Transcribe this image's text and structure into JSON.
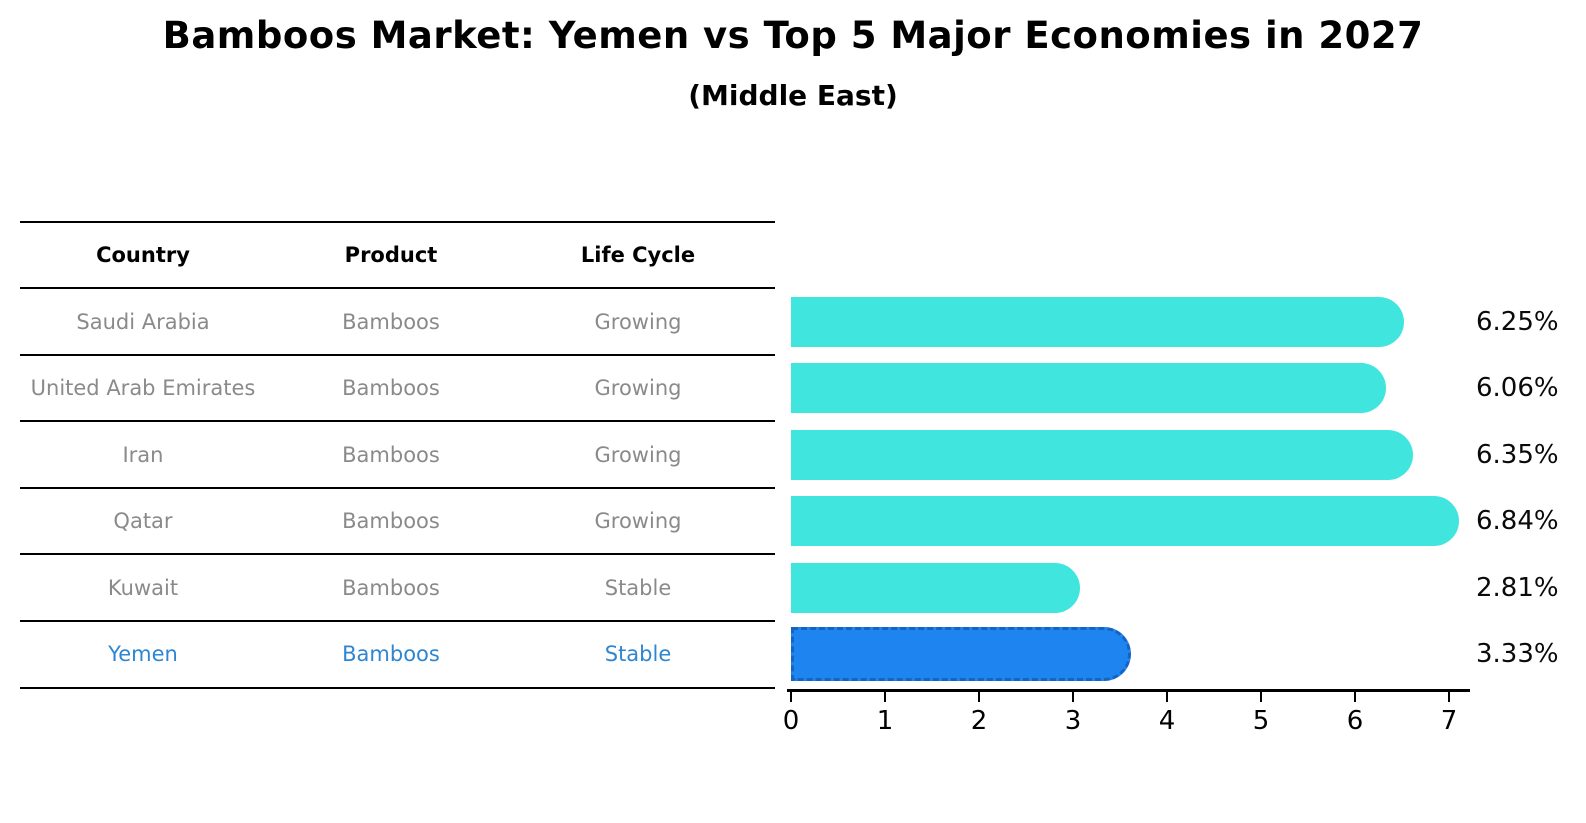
{
  "title": "Bamboos Market: Yemen vs Top 5 Major Economies in 2027",
  "subtitle": "(Middle East)",
  "table": {
    "headers": [
      "Country",
      "Product",
      "Life Cycle"
    ]
  },
  "rows": [
    {
      "country": "Saudi Arabia",
      "product": "Bamboos",
      "life_cycle": "Growing",
      "value_label": "6.25%",
      "highlight": false
    },
    {
      "country": "United Arab Emirates",
      "product": "Bamboos",
      "life_cycle": "Growing",
      "value_label": "6.06%",
      "highlight": false
    },
    {
      "country": "Iran",
      "product": "Bamboos",
      "life_cycle": "Growing",
      "value_label": "6.35%",
      "highlight": false
    },
    {
      "country": "Qatar",
      "product": "Bamboos",
      "life_cycle": "Growing",
      "value_label": "6.84%",
      "highlight": false
    },
    {
      "country": "Kuwait",
      "product": "Bamboos",
      "life_cycle": "Stable",
      "value_label": "2.81%",
      "highlight": false
    },
    {
      "country": "Yemen",
      "product": "Bamboos",
      "life_cycle": "Stable",
      "value_label": "3.33%",
      "highlight": true
    }
  ],
  "chart_data": {
    "type": "bar",
    "orientation": "horizontal",
    "title": "Bamboos Market: Yemen vs Top 5 Major Economies in 2027",
    "subtitle": "(Middle East)",
    "categories": [
      "Saudi Arabia",
      "United Arab Emirates",
      "Iran",
      "Qatar",
      "Kuwait",
      "Yemen"
    ],
    "values": [
      6.25,
      6.06,
      6.35,
      6.84,
      2.81,
      3.33
    ],
    "value_labels": [
      "6.25%",
      "6.06%",
      "6.35%",
      "6.84%",
      "2.81%",
      "3.33%"
    ],
    "xlabel": "",
    "ylabel": "",
    "xlim": [
      0,
      7.25
    ],
    "x_ticks": [
      0,
      1,
      2,
      3,
      4,
      5,
      6,
      7
    ],
    "grid": false,
    "legend": false,
    "highlight_category": "Yemen"
  },
  "colors": {
    "bar_default": "#40E5DE",
    "bar_highlight": "#1E84F0",
    "bar_highlight_border": "#1565C0",
    "row_text": "#8a8a8a",
    "highlight_text": "#2E86D1",
    "header_text": "#000000",
    "value_label_text": "#0a0a0a",
    "axis": "#000000",
    "background": "#ffffff"
  }
}
